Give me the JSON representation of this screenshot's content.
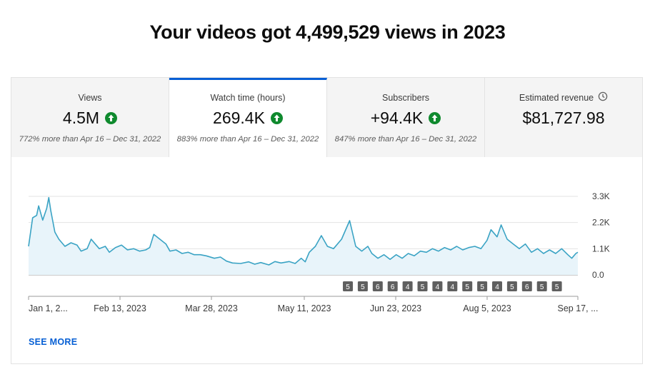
{
  "headline": "Your videos got 4,499,529 views in 2023",
  "tabs": [
    {
      "label": "Views",
      "value": "4.5M",
      "trend": "up",
      "compare": "772% more than Apr 16 – Dec 31, 2022"
    },
    {
      "label": "Watch time (hours)",
      "value": "269.4K",
      "trend": "up",
      "compare": "883% more than Apr 16 – Dec 31, 2022",
      "active": true
    },
    {
      "label": "Subscribers",
      "value": "+94.4K",
      "trend": "up",
      "compare": "847% more than Apr 16 – Dec 31, 2022"
    },
    {
      "label": "Estimated revenue",
      "value": "$81,727.98",
      "icon": "clock-icon"
    }
  ],
  "see_more": "SEE MORE",
  "colors": {
    "accent": "#065fd4",
    "line": "#3aa3c4",
    "fill": "#e8f4fa",
    "up": "#0f8a2e",
    "marker": "#5f5f5f"
  },
  "chart_data": {
    "type": "area",
    "series_name": "",
    "x_tick_labels": [
      "Jan 1, 2...",
      "Feb 13, 2023",
      "Mar 28, 2023",
      "May 11, 2023",
      "Jun 23, 2023",
      "Aug 5, 2023",
      "Sep 17, ..."
    ],
    "y_tick_labels": [
      "3.3K",
      "2.2K",
      "1.1K",
      "0.0"
    ],
    "ylim": [
      0,
      3300
    ],
    "x_range": [
      "2023-01-01",
      "2023-09-30"
    ],
    "points": [
      [
        "2023-01-01",
        1200
      ],
      [
        "2023-01-03",
        2400
      ],
      [
        "2023-01-05",
        2500
      ],
      [
        "2023-01-06",
        2900
      ],
      [
        "2023-01-08",
        2300
      ],
      [
        "2023-01-10",
        2800
      ],
      [
        "2023-01-11",
        3250
      ],
      [
        "2023-01-12",
        2700
      ],
      [
        "2023-01-14",
        1800
      ],
      [
        "2023-01-16",
        1500
      ],
      [
        "2023-01-19",
        1200
      ],
      [
        "2023-01-22",
        1350
      ],
      [
        "2023-01-25",
        1250
      ],
      [
        "2023-01-27",
        1000
      ],
      [
        "2023-01-30",
        1100
      ],
      [
        "2023-02-01",
        1500
      ],
      [
        "2023-02-03",
        1300
      ],
      [
        "2023-02-05",
        1100
      ],
      [
        "2023-02-08",
        1200
      ],
      [
        "2023-02-10",
        950
      ],
      [
        "2023-02-13",
        1150
      ],
      [
        "2023-02-16",
        1250
      ],
      [
        "2023-02-19",
        1050
      ],
      [
        "2023-02-22",
        1100
      ],
      [
        "2023-02-25",
        1000
      ],
      [
        "2023-02-28",
        1050
      ],
      [
        "2023-03-02",
        1150
      ],
      [
        "2023-03-04",
        1700
      ],
      [
        "2023-03-07",
        1500
      ],
      [
        "2023-03-10",
        1300
      ],
      [
        "2023-03-12",
        1000
      ],
      [
        "2023-03-15",
        1050
      ],
      [
        "2023-03-18",
        900
      ],
      [
        "2023-03-21",
        950
      ],
      [
        "2023-03-24",
        850
      ],
      [
        "2023-03-27",
        850
      ],
      [
        "2023-03-30",
        800
      ],
      [
        "2023-04-03",
        700
      ],
      [
        "2023-04-06",
        750
      ],
      [
        "2023-04-09",
        580
      ],
      [
        "2023-04-12",
        500
      ],
      [
        "2023-04-16",
        480
      ],
      [
        "2023-04-20",
        550
      ],
      [
        "2023-04-23",
        450
      ],
      [
        "2023-04-26",
        520
      ],
      [
        "2023-04-30",
        420
      ],
      [
        "2023-05-03",
        560
      ],
      [
        "2023-05-06",
        500
      ],
      [
        "2023-05-10",
        560
      ],
      [
        "2023-05-13",
        480
      ],
      [
        "2023-05-16",
        700
      ],
      [
        "2023-05-18",
        550
      ],
      [
        "2023-05-20",
        950
      ],
      [
        "2023-05-23",
        1200
      ],
      [
        "2023-05-26",
        1650
      ],
      [
        "2023-05-29",
        1200
      ],
      [
        "2023-06-01",
        1100
      ],
      [
        "2023-06-05",
        1500
      ],
      [
        "2023-06-09",
        2280
      ],
      [
        "2023-06-12",
        1200
      ],
      [
        "2023-06-15",
        1000
      ],
      [
        "2023-06-18",
        1200
      ],
      [
        "2023-06-20",
        900
      ],
      [
        "2023-06-23",
        700
      ],
      [
        "2023-06-26",
        850
      ],
      [
        "2023-06-29",
        650
      ],
      [
        "2023-07-02",
        850
      ],
      [
        "2023-07-05",
        700
      ],
      [
        "2023-07-08",
        900
      ],
      [
        "2023-07-11",
        800
      ],
      [
        "2023-07-14",
        1000
      ],
      [
        "2023-07-17",
        950
      ],
      [
        "2023-07-20",
        1100
      ],
      [
        "2023-07-23",
        1000
      ],
      [
        "2023-07-26",
        1150
      ],
      [
        "2023-07-29",
        1050
      ],
      [
        "2023-08-01",
        1200
      ],
      [
        "2023-08-04",
        1050
      ],
      [
        "2023-08-07",
        1150
      ],
      [
        "2023-08-10",
        1200
      ],
      [
        "2023-08-13",
        1100
      ],
      [
        "2023-08-16",
        1450
      ],
      [
        "2023-08-18",
        1900
      ],
      [
        "2023-08-21",
        1600
      ],
      [
        "2023-08-23",
        2100
      ],
      [
        "2023-08-26",
        1500
      ],
      [
        "2023-08-29",
        1300
      ],
      [
        "2023-09-01",
        1100
      ],
      [
        "2023-09-04",
        1300
      ],
      [
        "2023-09-07",
        950
      ],
      [
        "2023-09-10",
        1100
      ],
      [
        "2023-09-13",
        900
      ],
      [
        "2023-09-16",
        1050
      ],
      [
        "2023-09-19",
        900
      ],
      [
        "2023-09-22",
        1100
      ],
      [
        "2023-09-25",
        850
      ],
      [
        "2023-09-27",
        700
      ],
      [
        "2023-09-29",
        900
      ],
      [
        "2023-09-30",
        950
      ]
    ],
    "markers": [
      {
        "date": "2023-07-20",
        "label": "5"
      },
      {
        "date": "2023-07-29",
        "label": "5"
      },
      {
        "date": "2023-08-09",
        "label": "6"
      },
      {
        "date": "2023-08-19",
        "label": "6"
      },
      {
        "date": "2023-08-28",
        "label": "4"
      },
      {
        "date": "2023-09-06",
        "label": "5"
      },
      {
        "date": "2023-09-15",
        "label": "4"
      },
      {
        "date": "2023-09-24",
        "label": "4"
      },
      {
        "date": "2023-10-03",
        "label": "5"
      },
      {
        "date": "2023-10-12",
        "label": "5"
      },
      {
        "date": "2023-10-21",
        "label": "4"
      },
      {
        "date": "2023-10-30",
        "label": "5"
      },
      {
        "date": "2023-11-08",
        "label": "6"
      },
      {
        "date": "2023-11-17",
        "label": "5"
      },
      {
        "date": "2023-11-26",
        "label": "5"
      }
    ]
  }
}
